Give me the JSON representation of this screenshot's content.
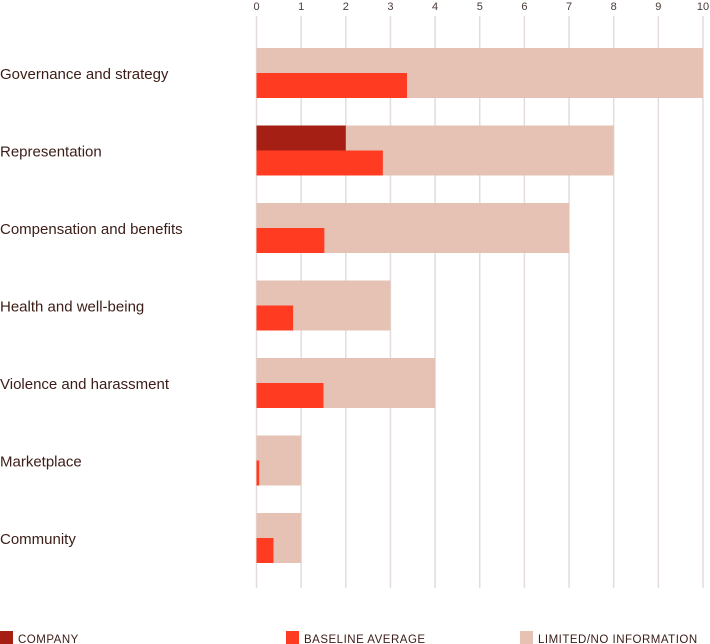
{
  "chart_data": {
    "type": "bar",
    "orientation": "horizontal",
    "categories": [
      "Governance and strategy",
      "Representation",
      "Compensation and benefits",
      "Health and well-being",
      "Violence and harassment",
      "Marketplace",
      "Community"
    ],
    "series": [
      {
        "name": "LIMITED/NO INFORMATION",
        "color": "#e6c2b5",
        "values": [
          10,
          8,
          7,
          3,
          4,
          1,
          1
        ]
      },
      {
        "name": "COMPANY",
        "color": "#a61f14",
        "values": [
          0,
          2,
          0,
          0,
          0,
          0,
          0
        ]
      },
      {
        "name": "BASELINE AVERAGE",
        "color": "#ff3b22",
        "values": [
          3.37,
          2.83,
          1.52,
          0.82,
          1.5,
          0.06,
          0.38
        ]
      }
    ],
    "xlim": [
      0,
      10
    ],
    "xticks": [
      "0",
      "1",
      "2",
      "3",
      "4",
      "5",
      "6",
      "7",
      "8",
      "9",
      "10"
    ],
    "grid": true,
    "legend_position": "bottom",
    "legend": [
      "COMPANY",
      "BASELINE AVERAGE",
      "LIMITED/NO INFORMATION"
    ]
  }
}
